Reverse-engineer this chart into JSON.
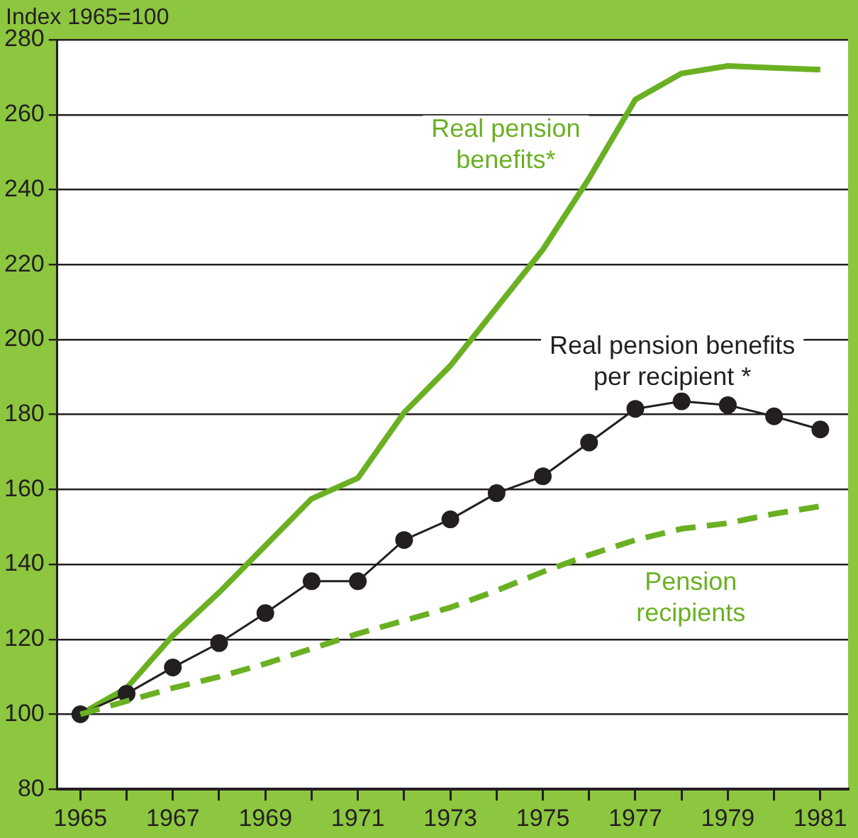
{
  "chart_data": {
    "type": "line",
    "ylabel": "Index 1965=100",
    "x": [
      1965,
      1966,
      1967,
      1968,
      1969,
      1970,
      1971,
      1972,
      1973,
      1974,
      1975,
      1976,
      1977,
      1978,
      1979,
      1980,
      1981
    ],
    "series": [
      {
        "name": "Real pension benefits*",
        "color": "#6ab023",
        "marker": "none",
        "line_style": "solid",
        "values": [
          100,
          107,
          121,
          132.5,
          145,
          157.5,
          163,
          180.5,
          193,
          208.5,
          224,
          243,
          264,
          271,
          273,
          272.5,
          272
        ]
      },
      {
        "name": "Real pension benefits per recipient *",
        "color": "#231f20",
        "marker": "circle",
        "line_style": "solid",
        "values": [
          100,
          105.5,
          112.5,
          119,
          127,
          135.5,
          135.5,
          146.5,
          152,
          159,
          163.5,
          172.5,
          181.5,
          183.5,
          182.5,
          179.5,
          176
        ]
      },
      {
        "name": "Pension recipients",
        "color": "#6ab023",
        "marker": "none",
        "line_style": "dashed",
        "values": [
          100,
          103.5,
          107,
          110,
          113.5,
          117.5,
          121.5,
          125,
          128.5,
          133,
          138,
          142.5,
          146.5,
          149.5,
          151,
          153.5,
          155.5
        ]
      }
    ],
    "xlim": [
      1964.5,
      1981.6
    ],
    "xticks": [
      1965,
      {
        "value": 1966,
        "label": null
      },
      1967,
      {
        "value": 1968,
        "label": null
      },
      1969,
      {
        "value": 1970,
        "label": null
      },
      1971,
      {
        "value": 1972,
        "label": null
      },
      1973,
      {
        "value": 1974,
        "label": null
      },
      1975,
      {
        "value": 1976,
        "label": null
      },
      1977,
      {
        "value": 1978,
        "label": null
      },
      1979,
      {
        "value": 1980,
        "label": null
      },
      1981
    ],
    "ylim": [
      80,
      280
    ],
    "yticks": [
      80,
      100,
      120,
      140,
      160,
      180,
      200,
      220,
      240,
      260,
      280
    ],
    "grid": "y",
    "legend": false
  }
}
